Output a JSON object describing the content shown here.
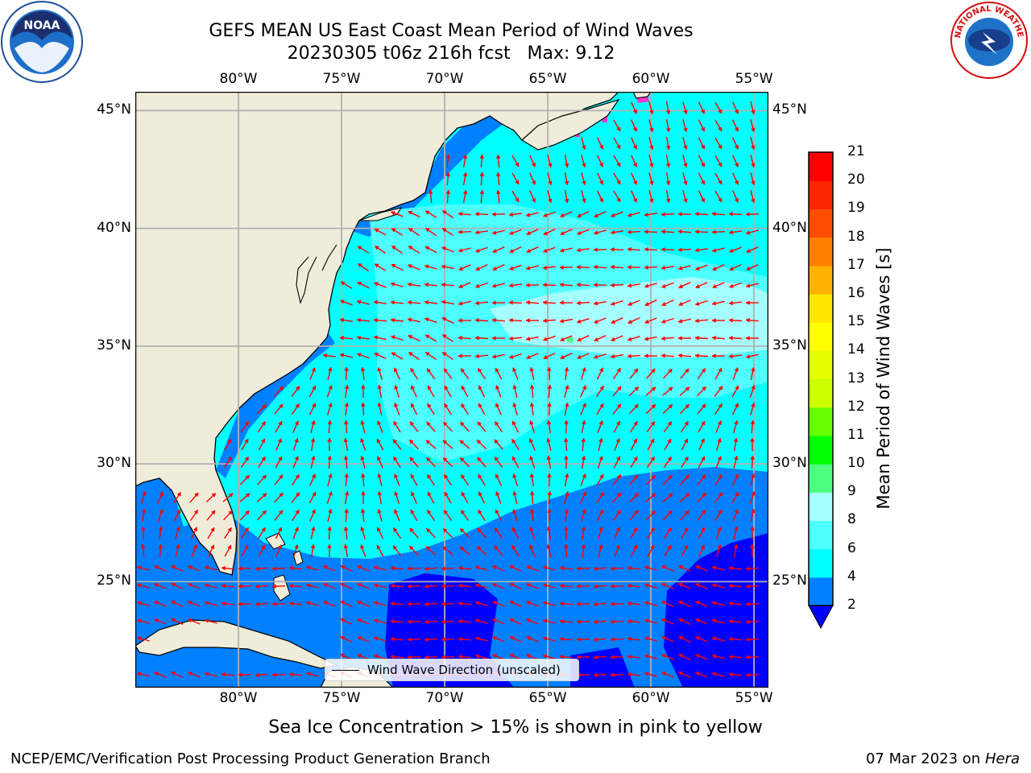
{
  "title": {
    "line1": "GEFS MEAN US East Coast Mean Period of Wind Waves",
    "line2": "20230305 t06z 216h fcst   Max: 9.12"
  },
  "logos": {
    "left": {
      "text": "NOAA",
      "icon": "noaa-logo-icon"
    },
    "right": {
      "text": "NATIONAL WEATHER SERVICE",
      "icon": "nws-logo-icon"
    }
  },
  "map": {
    "lon_labels": [
      "80°W",
      "75°W",
      "70°W",
      "65°W",
      "60°W",
      "55°W"
    ],
    "lat_labels": [
      "45°N",
      "40°N",
      "35°N",
      "30°N",
      "25°N"
    ],
    "lon_values": [
      -80,
      -75,
      -70,
      -65,
      -60,
      -55
    ],
    "lat_values": [
      45,
      40,
      35,
      30,
      25
    ],
    "extent": {
      "lon_min": -85,
      "lon_max": -54.3,
      "lat_min": 20.5,
      "lat_max": 45.8
    },
    "colors": {
      "land": "#efedda",
      "coast": "#000000",
      "grid": "#b0b0b0",
      "arrow": "#ff0000"
    },
    "legend": {
      "label": "Wind Wave Direction (unscaled)"
    }
  },
  "colorbar": {
    "label": "Mean Period of Wind Waves [s]",
    "ticks": [
      "21",
      "20",
      "19",
      "18",
      "17",
      "16",
      "15",
      "14",
      "13",
      "12",
      "11",
      "10",
      "9",
      "8",
      "6",
      "4",
      "2"
    ],
    "colors_bottom_to_top": [
      "#0080ff",
      "#00ffff",
      "#4dffff",
      "#a6ffff",
      "#4dff80",
      "#00ff00",
      "#66ff00",
      "#ccff00",
      "#e6ff00",
      "#ffff00",
      "#ffe600",
      "#ffb300",
      "#ff8000",
      "#ff4d00",
      "#ff2600",
      "#ff0000"
    ],
    "under_color": "#0000ff"
  },
  "note": "Sea Ice Concentration > 15% is shown in pink to yellow",
  "footer": {
    "left": "NCEP/EMC/Verification Post Processing Product Generation Branch",
    "right_date": "07 Mar 2023 on",
    "right_host": "Hera"
  }
}
